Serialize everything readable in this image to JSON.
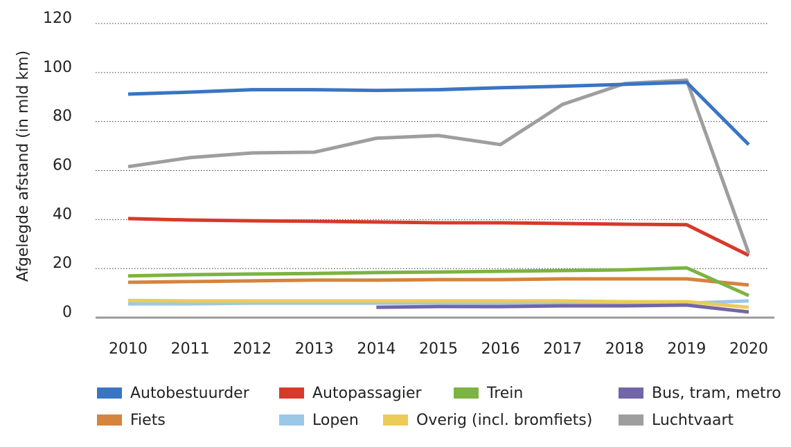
{
  "chart_data": {
    "type": "line",
    "y_label": "Afgelegde afstand (in mld km)",
    "categories": [
      "2010",
      "2011",
      "2012",
      "2013",
      "2014",
      "2015",
      "2016",
      "2017",
      "2018",
      "2019",
      "2020"
    ],
    "ylim": [
      0,
      120
    ],
    "yticks": [
      0,
      20,
      40,
      60,
      80,
      100,
      120
    ],
    "grid": true,
    "series": [
      {
        "name": "Autobestuurder",
        "color": "#3a75c4",
        "values": [
          91.2,
          92,
          93,
          93,
          92.7,
          93,
          93.8,
          94.4,
          95.2,
          96,
          70.6
        ]
      },
      {
        "name": "Autopassagier",
        "color": "#d7392b",
        "values": [
          40.4,
          39.8,
          39.5,
          39.3,
          39,
          38.7,
          38.7,
          38.4,
          38.1,
          37.9,
          25.4
        ]
      },
      {
        "name": "Trein",
        "color": "#7cb342",
        "values": [
          17,
          17.5,
          17.8,
          18,
          18.4,
          18.6,
          18.9,
          19.2,
          19.5,
          20.3,
          9
        ]
      },
      {
        "name": "Bus, tram, metro",
        "color": "#7265a8",
        "values": [
          null,
          null,
          null,
          null,
          4.2,
          4.5,
          4.5,
          4.8,
          4.8,
          5.1,
          2.3
        ]
      },
      {
        "name": "Fiets",
        "color": "#d4843e",
        "values": [
          14.4,
          14.7,
          15,
          15.3,
          15.3,
          15.5,
          15.5,
          15.8,
          15.8,
          15.8,
          13.3
        ]
      },
      {
        "name": "Lopen",
        "color": "#9cc8e8",
        "values": [
          5.6,
          5.6,
          5.9,
          5.9,
          5.9,
          5.9,
          5.9,
          5.9,
          5.9,
          5.9,
          6.8
        ]
      },
      {
        "name": "Overig (incl. bromfiets)",
        "color": "#eccb58",
        "values": [
          7,
          6.8,
          6.8,
          6.8,
          6.8,
          6.8,
          6.8,
          6.8,
          6.5,
          6.5,
          4.2
        ]
      },
      {
        "name": "Luchtvaart",
        "color": "#9e9e9e",
        "values": [
          61.6,
          65.3,
          67.2,
          67.5,
          73.2,
          74.3,
          70.6,
          87,
          95.5,
          96.9,
          26.3
        ]
      }
    ]
  }
}
